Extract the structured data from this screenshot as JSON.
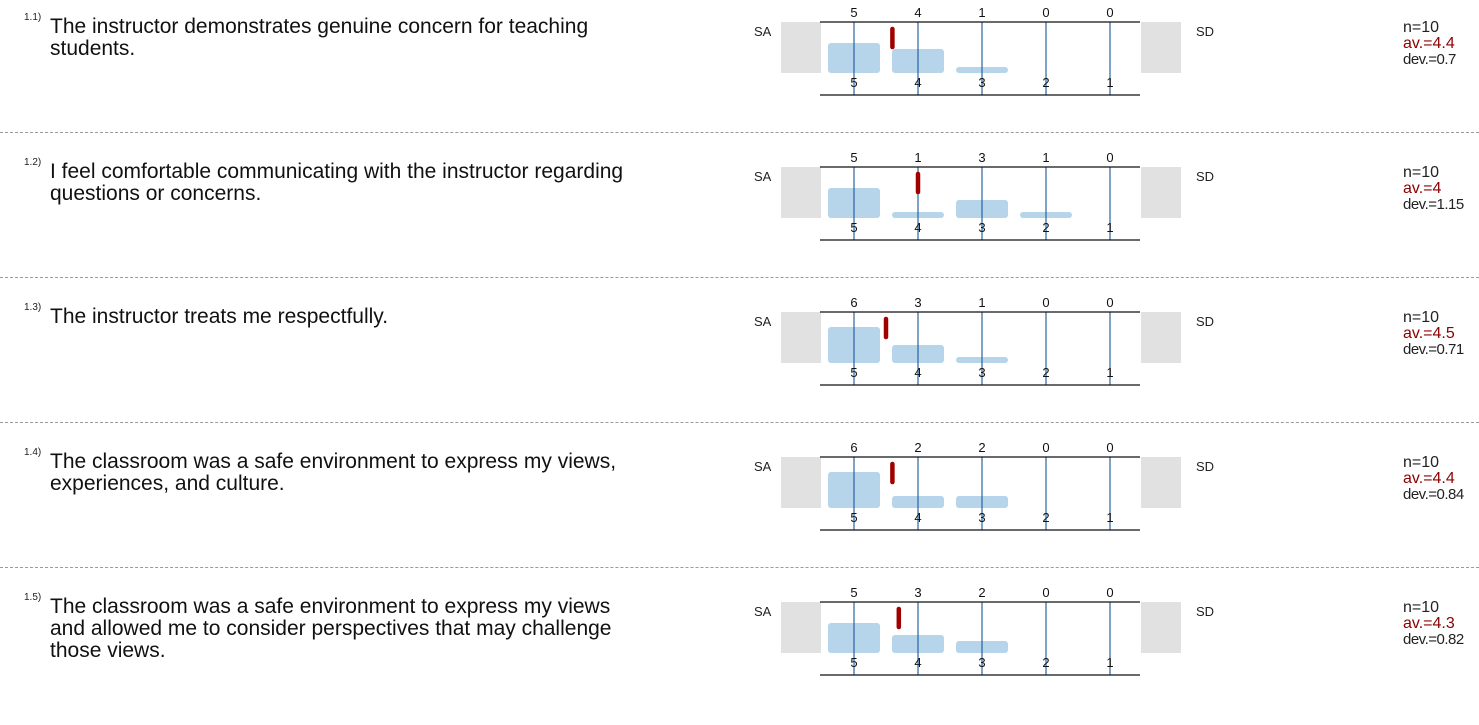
{
  "scale": {
    "left_label": "SA",
    "right_label": "SD",
    "ticks": [
      "5",
      "4",
      "3",
      "2",
      "1"
    ]
  },
  "colors": {
    "bar": "#b6d4ea",
    "gridline": "#2a64a0",
    "mean_marker": "#a00000",
    "grey_box": "#e1e1e1",
    "average_text": "#8b0000"
  },
  "questions": [
    {
      "num": "1.1)",
      "text": "The instructor demonstrates genuine concern for teaching students.",
      "stats": {
        "n": "n=10",
        "av": "av.=4.4",
        "dev": "dev.=0.7"
      }
    },
    {
      "num": "1.2)",
      "text": "I feel comfortable communicating with the instructor regarding questions or concerns.",
      "stats": {
        "n": "n=10",
        "av": "av.=4",
        "dev": "dev.=1.15"
      }
    },
    {
      "num": "1.3)",
      "text": "The instructor treats me respectfully.",
      "stats": {
        "n": "n=10",
        "av": "av.=4.5",
        "dev": "dev.=0.71"
      }
    },
    {
      "num": "1.4)",
      "text": "The classroom was a safe environment to express my views, experiences, and culture.",
      "stats": {
        "n": "n=10",
        "av": "av.=4.4",
        "dev": "dev.=0.84"
      }
    },
    {
      "num": "1.5)",
      "text": "The classroom was a safe environment to express my views and allowed me to consider perspectives that may challenge those views.",
      "stats": {
        "n": "n=10",
        "av": "av.=4.3",
        "dev": "dev.=0.82"
      }
    }
  ],
  "chart_data": [
    {
      "type": "bar",
      "categories": [
        "5",
        "4",
        "3",
        "2",
        "1"
      ],
      "values": [
        5,
        4,
        1,
        0,
        0
      ],
      "mean": 4.4
    },
    {
      "type": "bar",
      "categories": [
        "5",
        "4",
        "3",
        "2",
        "1"
      ],
      "values": [
        5,
        1,
        3,
        1,
        0
      ],
      "mean": 4.0
    },
    {
      "type": "bar",
      "categories": [
        "5",
        "4",
        "3",
        "2",
        "1"
      ],
      "values": [
        6,
        3,
        1,
        0,
        0
      ],
      "mean": 4.5
    },
    {
      "type": "bar",
      "categories": [
        "5",
        "4",
        "3",
        "2",
        "1"
      ],
      "values": [
        6,
        2,
        2,
        0,
        0
      ],
      "mean": 4.4
    },
    {
      "type": "bar",
      "categories": [
        "5",
        "4",
        "3",
        "2",
        "1"
      ],
      "values": [
        5,
        3,
        2,
        0,
        0
      ],
      "mean": 4.3
    }
  ]
}
